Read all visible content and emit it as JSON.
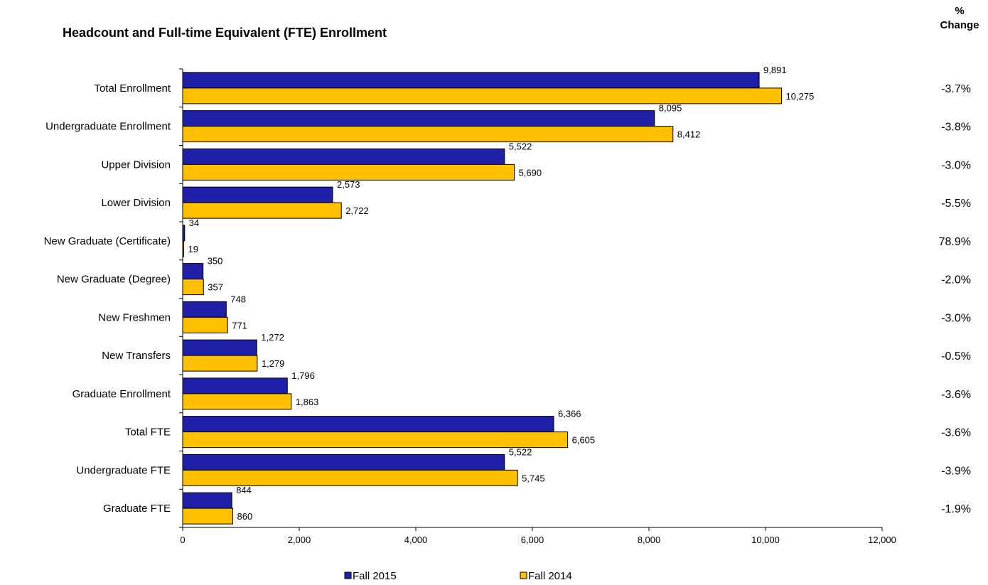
{
  "chart_data": {
    "type": "bar",
    "orientation": "horizontal",
    "title": "Headcount and Full-time Equivalent (FTE) Enrollment",
    "categories": [
      "Total Enrollment",
      "Undergraduate Enrollment",
      "Upper Division",
      "Lower Division",
      "New Graduate (Certificate)",
      "New Graduate (Degree)",
      "New Freshmen",
      "New Transfers",
      "Graduate Enrollment",
      "Total FTE",
      "Undergraduate FTE",
      "Graduate FTE"
    ],
    "series": [
      {
        "name": "Fall 2015",
        "color": "#1F1FA8",
        "values": [
          9891,
          8095,
          5522,
          2573,
          34,
          350,
          748,
          1272,
          1796,
          6366,
          5522,
          844
        ],
        "labels": [
          "9,891",
          "8,095",
          "5,522",
          "2,573",
          "34",
          "350",
          "748",
          "1,272",
          "1,796",
          "6,366",
          "5,522",
          "844"
        ]
      },
      {
        "name": "Fall 2014",
        "color": "#FFC000",
        "values": [
          10275,
          8412,
          5690,
          2722,
          19,
          357,
          771,
          1279,
          1863,
          6605,
          5745,
          860
        ],
        "labels": [
          "10,275",
          "8,412",
          "5,690",
          "2,722",
          "19",
          "357",
          "771",
          "1,279",
          "1,863",
          "6,605",
          "5,745",
          "860"
        ]
      }
    ],
    "xlim": [
      0,
      12000
    ],
    "xticks": [
      0,
      2000,
      4000,
      6000,
      8000,
      10000,
      12000
    ],
    "xtick_labels": [
      "0",
      "2,000",
      "4,000",
      "6,000",
      "8,000",
      "10,000",
      "12,000"
    ],
    "grid": false,
    "legend_position": "bottom",
    "pct_change_header": [
      "%",
      "Change"
    ],
    "pct_change": [
      "-3.7%",
      "-3.8%",
      "-3.0%",
      "-5.5%",
      "78.9%",
      "-2.0%",
      "-3.0%",
      "-0.5%",
      "-3.6%",
      "-3.6%",
      "-3.9%",
      "-1.9%"
    ]
  }
}
